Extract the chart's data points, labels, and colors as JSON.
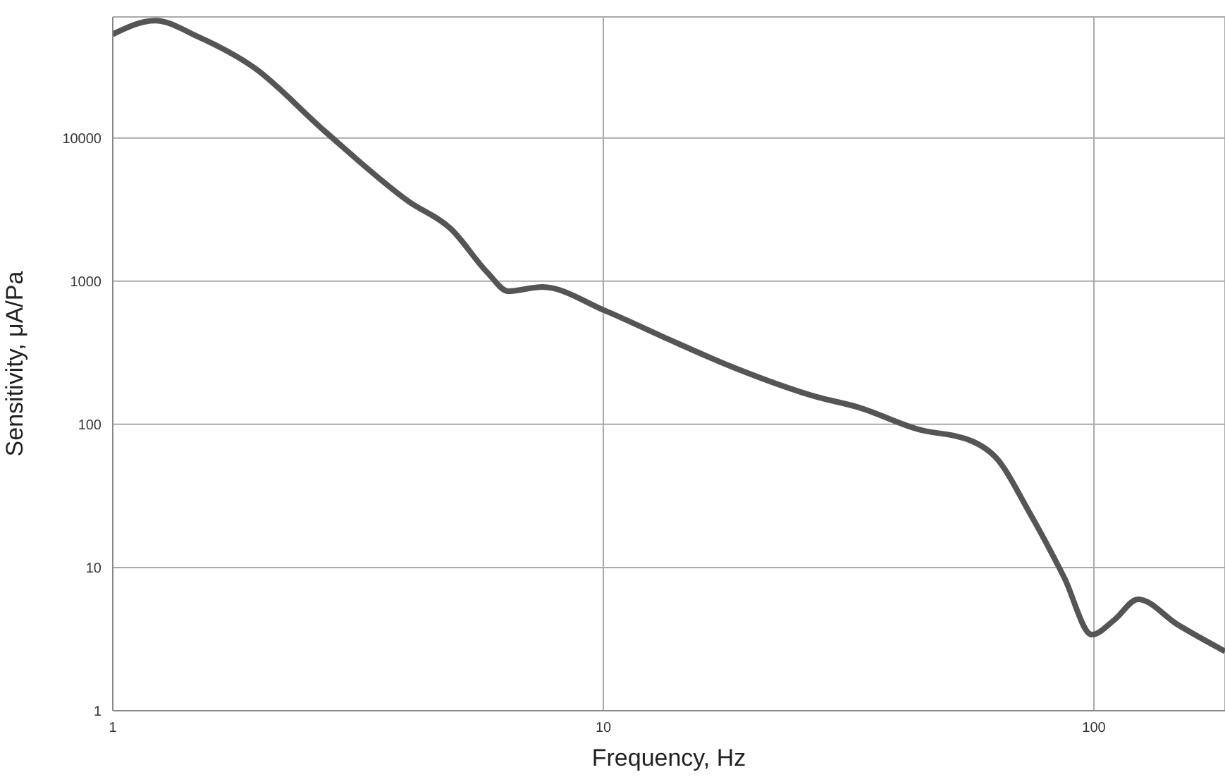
{
  "chart_data": {
    "type": "line",
    "xlabel": "Frequency, Hz",
    "ylabel": "Sensitivity, μA/Pa",
    "log": "xy",
    "grid": true,
    "xlim": [
      1,
      185
    ],
    "xticks": [
      1,
      10,
      100
    ],
    "ylim": [
      1,
      70000
    ],
    "yticks": [
      1,
      10,
      100,
      1000,
      10000
    ],
    "line_style": "solid",
    "marker": "none",
    "x": [
      1,
      1.22,
      1.49,
      1.94,
      2.7,
      4.01,
      4.9,
      5.8,
      6.4,
      7.5,
      10.1,
      13.2,
      18.4,
      27.3,
      33,
      43.5,
      56.6,
      63,
      74,
      87,
      99,
      110,
      123,
      148,
      185
    ],
    "series": [
      {
        "color": "#555555",
        "values": [
          53000,
          66000,
          51000,
          31000,
          11200,
          3600,
          2300,
          1150,
          850,
          910,
          620,
          410,
          250,
          155,
          132,
          93,
          76,
          59,
          24,
          8.5,
          3.4,
          4.3,
          6.0,
          4.0,
          2.6
        ]
      }
    ]
  }
}
